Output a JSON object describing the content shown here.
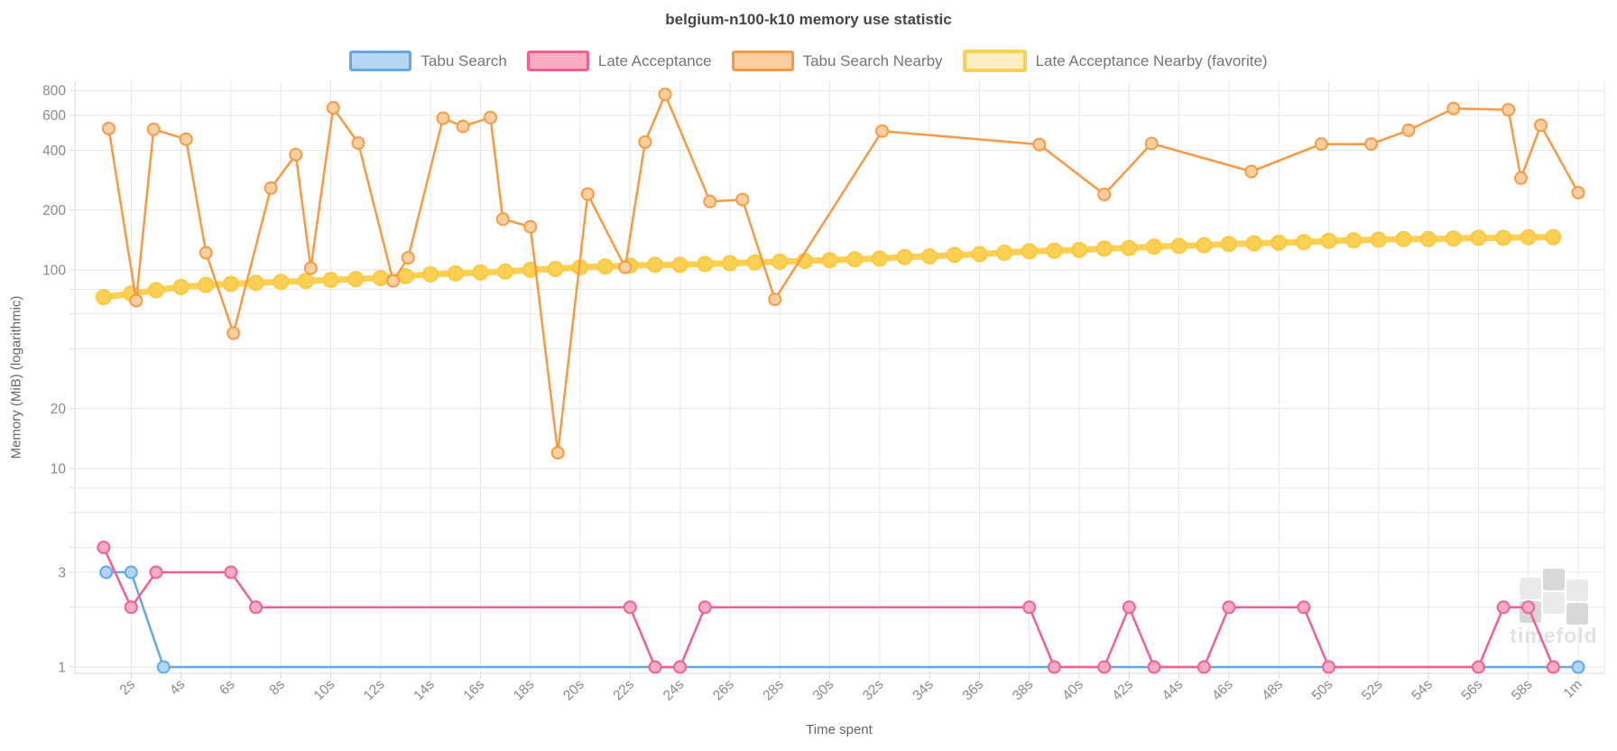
{
  "title": "belgium-n100-k10 memory use statistic",
  "watermark": {
    "text": "timefold"
  },
  "colors": {
    "grid": "#e7e7e7",
    "axis_border": "#d9d9d9",
    "tick_text": "#8a8a8a",
    "axis_title_text": "#666666",
    "legend_text": "#757575",
    "title_text": "#464646",
    "watermark_text": "#e2e2e2",
    "watermark_flag_dark": "#d8d8d8",
    "watermark_flag_light": "#eaeaea"
  },
  "legend": [
    {
      "label": "Tabu Search",
      "key": "tabu_search"
    },
    {
      "label": "Late Acceptance",
      "key": "late_acceptance"
    },
    {
      "label": "Tabu Search Nearby",
      "key": "tabu_search_nearby"
    },
    {
      "label": "Late Acceptance Nearby (favorite)",
      "key": "late_acceptance_nearby"
    }
  ],
  "axes": {
    "x_title": "Time spent",
    "y_title": "Memory (MiB) (logarithmic)",
    "x_ticks": [
      {
        "t": 2,
        "label": "2s"
      },
      {
        "t": 4,
        "label": "4s"
      },
      {
        "t": 6,
        "label": "6s"
      },
      {
        "t": 8,
        "label": "8s"
      },
      {
        "t": 10,
        "label": "10s"
      },
      {
        "t": 12,
        "label": "12s"
      },
      {
        "t": 14,
        "label": "14s"
      },
      {
        "t": 16,
        "label": "16s"
      },
      {
        "t": 18,
        "label": "18s"
      },
      {
        "t": 20,
        "label": "20s"
      },
      {
        "t": 22,
        "label": "22s"
      },
      {
        "t": 24,
        "label": "24s"
      },
      {
        "t": 26,
        "label": "26s"
      },
      {
        "t": 28,
        "label": "28s"
      },
      {
        "t": 30,
        "label": "30s"
      },
      {
        "t": 32,
        "label": "32s"
      },
      {
        "t": 34,
        "label": "34s"
      },
      {
        "t": 36,
        "label": "36s"
      },
      {
        "t": 38,
        "label": "38s"
      },
      {
        "t": 40,
        "label": "40s"
      },
      {
        "t": 42,
        "label": "42s"
      },
      {
        "t": 44,
        "label": "44s"
      },
      {
        "t": 46,
        "label": "46s"
      },
      {
        "t": 48,
        "label": "48s"
      },
      {
        "t": 50,
        "label": "50s"
      },
      {
        "t": 52,
        "label": "52s"
      },
      {
        "t": 54,
        "label": "54s"
      },
      {
        "t": 56,
        "label": "56s"
      },
      {
        "t": 58,
        "label": "58s"
      },
      {
        "t": 60,
        "label": "1m"
      }
    ],
    "y_gridline_values": [
      1,
      2,
      3,
      4,
      6,
      8,
      10,
      20,
      40,
      60,
      80,
      100,
      200,
      400,
      600,
      800
    ],
    "y_tick_labels": [
      {
        "v": 800,
        "label": "800"
      },
      {
        "v": 600,
        "label": "600"
      },
      {
        "v": 400,
        "label": "400"
      },
      {
        "v": 200,
        "label": "200"
      },
      {
        "v": 100,
        "label": "100"
      },
      {
        "v": 20,
        "label": "20"
      },
      {
        "v": 10,
        "label": "10"
      },
      {
        "v": 3,
        "label": "3"
      },
      {
        "v": 1,
        "label": "1"
      }
    ]
  },
  "chart_data": {
    "type": "line",
    "xlabel": "Time spent",
    "ylabel": "Memory (MiB) (logarithmic)",
    "x_unit": "seconds",
    "y_scale": "log",
    "y_range_shown": [
      1,
      890
    ],
    "x_range_shown": [
      0,
      61
    ],
    "grid": true,
    "legend_position": "top",
    "series": [
      {
        "name": "Late Acceptance Nearby (favorite)",
        "key": "late_acceptance_nearby",
        "line_color": "#FCD054",
        "point_fill": "#FCD054",
        "point_stroke": "#FBC93E",
        "swatch_fill": "#FDEEC3",
        "line_width": 7,
        "point_radius": 8,
        "data": [
          [
            0.9,
            73
          ],
          [
            2,
            76
          ],
          [
            3,
            79
          ],
          [
            4,
            82
          ],
          [
            5,
            84
          ],
          [
            6,
            85
          ],
          [
            7,
            86
          ],
          [
            8,
            87
          ],
          [
            9,
            88
          ],
          [
            10,
            89
          ],
          [
            11,
            90
          ],
          [
            12,
            91
          ],
          [
            13,
            93
          ],
          [
            14,
            95
          ],
          [
            15,
            96
          ],
          [
            16,
            97
          ],
          [
            17,
            98
          ],
          [
            18,
            100
          ],
          [
            19,
            101
          ],
          [
            20,
            103
          ],
          [
            21,
            104
          ],
          [
            22,
            105
          ],
          [
            23,
            106
          ],
          [
            24,
            106
          ],
          [
            25,
            107
          ],
          [
            26,
            108
          ],
          [
            27,
            109
          ],
          [
            28,
            110
          ],
          [
            29,
            111
          ],
          [
            30,
            112
          ],
          [
            31,
            113
          ],
          [
            32,
            114
          ],
          [
            33,
            116
          ],
          [
            34,
            117
          ],
          [
            35,
            119
          ],
          [
            36,
            120
          ],
          [
            37,
            122
          ],
          [
            38,
            124
          ],
          [
            39,
            125
          ],
          [
            40,
            126
          ],
          [
            41,
            128
          ],
          [
            42,
            129
          ],
          [
            43,
            131
          ],
          [
            44,
            132
          ],
          [
            45,
            133
          ],
          [
            46,
            135
          ],
          [
            47,
            136
          ],
          [
            48,
            137
          ],
          [
            49,
            138
          ],
          [
            50,
            140
          ],
          [
            51,
            141
          ],
          [
            52,
            142
          ],
          [
            53,
            143
          ],
          [
            54,
            143
          ],
          [
            55,
            144
          ],
          [
            56,
            145
          ],
          [
            57,
            145
          ],
          [
            58,
            146
          ],
          [
            59,
            146
          ]
        ]
      },
      {
        "name": "Tabu Search",
        "key": "tabu_search",
        "line_color": "#62A8EA",
        "point_fill": "#AED5F6",
        "point_stroke": "#62A8EA",
        "swatch_fill": "#B3D7F5",
        "line_width": 2.5,
        "point_radius": 6.5,
        "data": [
          [
            1,
            3
          ],
          [
            2,
            3
          ],
          [
            3.3,
            1
          ],
          [
            60,
            1
          ]
        ]
      },
      {
        "name": "Late Acceptance",
        "key": "late_acceptance",
        "line_color": "#F3608E",
        "point_fill": "#F8ABC2",
        "point_stroke": "#F3608E",
        "swatch_fill": "#F9ABC2",
        "line_width": 2.5,
        "point_radius": 6.5,
        "data": [
          [
            0.9,
            4
          ],
          [
            2,
            2
          ],
          [
            3,
            3
          ],
          [
            6,
            3
          ],
          [
            7,
            2
          ],
          [
            22,
            2
          ],
          [
            23,
            1
          ],
          [
            24,
            1
          ],
          [
            25,
            2
          ],
          [
            38,
            2
          ],
          [
            39,
            1
          ],
          [
            41,
            1
          ],
          [
            42,
            2
          ],
          [
            43,
            1
          ],
          [
            45,
            1
          ],
          [
            46,
            2
          ],
          [
            49,
            2
          ],
          [
            50,
            1
          ],
          [
            56,
            1
          ],
          [
            57,
            2
          ],
          [
            58,
            2
          ],
          [
            59,
            1
          ]
        ]
      },
      {
        "name": "Tabu Search Nearby",
        "key": "tabu_search_nearby",
        "line_color": "#F99A43",
        "point_fill": "#FBD0A1",
        "point_stroke": "#F99A43",
        "swatch_fill": "#FBCFA0",
        "line_width": 2.5,
        "point_radius": 6.5,
        "data": [
          [
            1.1,
            515
          ],
          [
            2.2,
            70
          ],
          [
            2.9,
            510
          ],
          [
            4.2,
            455
          ],
          [
            5,
            122
          ],
          [
            6.1,
            48
          ],
          [
            7.6,
            258
          ],
          [
            8.6,
            380
          ],
          [
            9.2,
            102
          ],
          [
            10.1,
            655
          ],
          [
            11.1,
            435
          ],
          [
            12.5,
            88
          ],
          [
            13.1,
            115
          ],
          [
            14.5,
            580
          ],
          [
            15.3,
            528
          ],
          [
            16.4,
            585
          ],
          [
            16.9,
            180
          ],
          [
            18,
            165
          ],
          [
            19.1,
            12
          ],
          [
            20.3,
            241
          ],
          [
            21.8,
            103
          ],
          [
            22.6,
            440
          ],
          [
            23.4,
            765
          ],
          [
            25.2,
            221
          ],
          [
            26.5,
            226
          ],
          [
            27.8,
            71
          ],
          [
            32.1,
            500
          ],
          [
            38.4,
            428
          ],
          [
            41,
            240
          ],
          [
            42.9,
            433
          ],
          [
            46.9,
            313
          ],
          [
            49.7,
            430
          ],
          [
            51.7,
            430
          ],
          [
            53.2,
            505
          ],
          [
            55,
            650
          ],
          [
            57.2,
            640
          ],
          [
            57.7,
            290
          ],
          [
            58.5,
            535
          ],
          [
            60,
            245
          ]
        ]
      }
    ]
  }
}
